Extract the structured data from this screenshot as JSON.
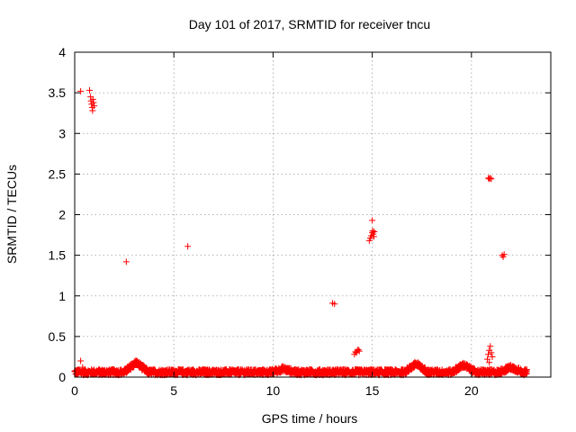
{
  "chart_data": {
    "type": "scatter",
    "title": "Day 101 of 2017, SRMTID for receiver tncu",
    "xlabel": "GPS time / hours",
    "ylabel": "SRMTID / TECUs",
    "xlim": [
      0,
      24
    ],
    "ylim": [
      0,
      4
    ],
    "xticks": [
      0,
      5,
      10,
      15,
      20
    ],
    "yticks": [
      0,
      0.5,
      1,
      1.5,
      2,
      2.5,
      3,
      3.5,
      4
    ],
    "xtick_labels": [
      "0",
      "5",
      "10",
      "15",
      "20"
    ],
    "ytick_labels": [
      "0",
      "0.5",
      "1",
      "1.5",
      "2",
      "2.5",
      "3",
      "3.5",
      "4"
    ],
    "grid": true,
    "marker": "+",
    "marker_color": "#ff0000",
    "baseline": {
      "description_range_x": [
        0,
        22.8
      ],
      "typical_y": 0.06,
      "bumps": [
        {
          "x": 3.1,
          "y": 0.18
        },
        {
          "x": 10.5,
          "y": 0.1
        },
        {
          "x": 17.2,
          "y": 0.16
        },
        {
          "x": 19.6,
          "y": 0.15
        },
        {
          "x": 22.0,
          "y": 0.12
        }
      ]
    },
    "series": [
      {
        "name": "SRMTID",
        "points": [
          [
            0.3,
            3.52
          ],
          [
            0.75,
            3.53
          ],
          [
            0.8,
            3.45
          ],
          [
            0.82,
            3.4
          ],
          [
            0.85,
            3.36
          ],
          [
            0.88,
            3.32
          ],
          [
            0.9,
            3.28
          ],
          [
            0.92,
            3.42
          ],
          [
            0.95,
            3.38
          ],
          [
            0.98,
            3.34
          ],
          [
            0.3,
            0.2
          ],
          [
            0.4,
            0.12
          ],
          [
            2.6,
            1.42
          ],
          [
            3.1,
            0.2
          ],
          [
            3.15,
            0.15
          ],
          [
            5.7,
            1.61
          ],
          [
            13.0,
            0.91
          ],
          [
            13.1,
            0.9
          ],
          [
            14.1,
            0.28
          ],
          [
            14.15,
            0.31
          ],
          [
            14.2,
            0.3
          ],
          [
            14.25,
            0.33
          ],
          [
            14.3,
            0.34
          ],
          [
            14.35,
            0.32
          ],
          [
            14.85,
            1.68
          ],
          [
            14.9,
            1.71
          ],
          [
            14.95,
            1.74
          ],
          [
            15.0,
            1.78
          ],
          [
            15.02,
            1.8
          ],
          [
            15.05,
            1.76
          ],
          [
            15.08,
            1.73
          ],
          [
            15.1,
            1.79
          ],
          [
            15.0,
            1.93
          ],
          [
            17.1,
            0.17
          ],
          [
            17.3,
            0.18
          ],
          [
            20.85,
            2.45
          ],
          [
            20.9,
            2.44
          ],
          [
            20.95,
            2.45
          ],
          [
            21.0,
            2.44
          ],
          [
            20.8,
            0.22
          ],
          [
            20.85,
            0.28
          ],
          [
            20.9,
            0.33
          ],
          [
            20.95,
            0.38
          ],
          [
            21.0,
            0.3
          ],
          [
            21.05,
            0.25
          ],
          [
            20.9,
            0.18
          ],
          [
            21.55,
            1.5
          ],
          [
            21.6,
            1.48
          ],
          [
            21.65,
            1.51
          ]
        ]
      }
    ]
  }
}
